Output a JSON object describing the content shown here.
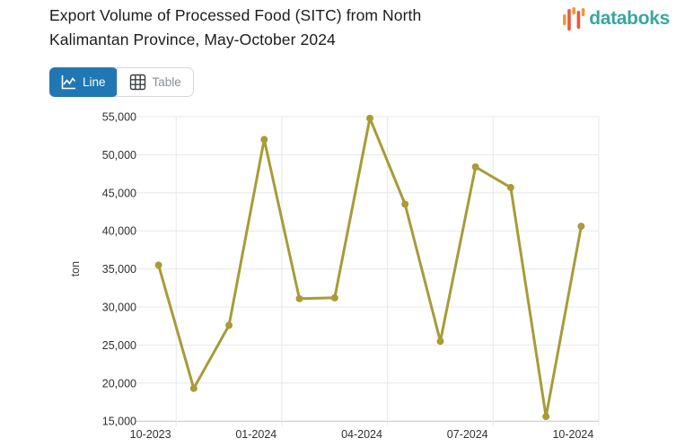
{
  "header": {
    "title_line1": "Export Volume of Processed Food (SITC) from North",
    "title_line2": "Kalimantan Province, May-October 2024"
  },
  "brand": {
    "name": "databoks",
    "text_color": "#38a79f",
    "bar_colors": [
      "#f5953b",
      "#e85a3c",
      "#f5953b",
      "#e85a3c",
      "#f5953b"
    ]
  },
  "toolbar": {
    "line_label": "Line",
    "table_label": "Table",
    "active_bg": "#2177b4",
    "active_text": "#ffffff"
  },
  "chart_data": {
    "type": "line",
    "title": "Export Volume of Processed Food (SITC) from North Kalimantan Province, May-October 2024",
    "xlabel": "",
    "ylabel": "ton",
    "categories": [
      "10-2023",
      "11-2023",
      "12-2023",
      "01-2024",
      "02-2024",
      "03-2024",
      "04-2024",
      "05-2024",
      "06-2024",
      "07-2024",
      "08-2024",
      "09-2024",
      "10-2024"
    ],
    "values": [
      35500,
      19300,
      27600,
      52000,
      31100,
      31200,
      54800,
      43500,
      25500,
      48400,
      45700,
      15600,
      40600
    ],
    "x_tick_labels": [
      "10-2023",
      "01-2024",
      "04-2024",
      "07-2024",
      "10-2024"
    ],
    "x_tick_indices": [
      0,
      3,
      6,
      9,
      12
    ],
    "y_ticks": [
      15000,
      20000,
      25000,
      30000,
      35000,
      40000,
      45000,
      50000,
      55000
    ],
    "ylim": [
      15000,
      55000
    ],
    "grid": true,
    "legend": "none",
    "line_color": "#a89b38",
    "grid_color": "#e7e7e7",
    "axis_color": "#c6c6c6"
  }
}
